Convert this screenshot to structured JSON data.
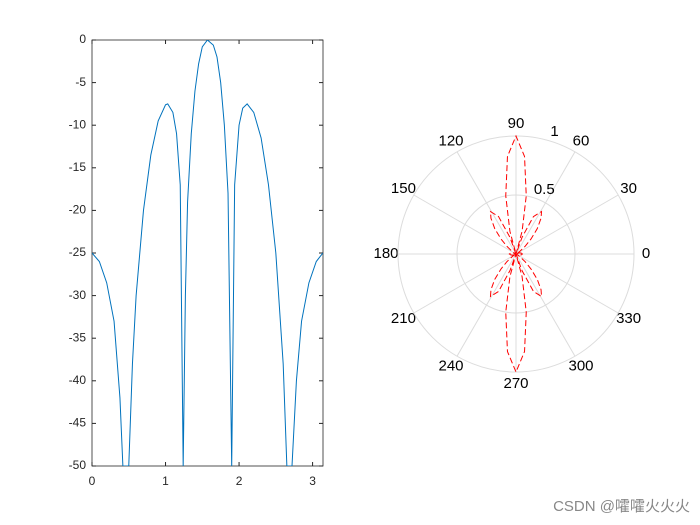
{
  "chart_data": [
    {
      "type": "line",
      "color": "#0072bd",
      "x": [
        0,
        0.1,
        0.2,
        0.3,
        0.38,
        0.42,
        0.5,
        0.55,
        0.6,
        0.7,
        0.8,
        0.9,
        1.0,
        1.03,
        1.1,
        1.15,
        1.2,
        1.24,
        1.27,
        1.3,
        1.35,
        1.4,
        1.45,
        1.5,
        1.57,
        1.65,
        1.7,
        1.75,
        1.8,
        1.85,
        1.9,
        1.94,
        2.0,
        2.05,
        2.11,
        2.2,
        2.3,
        2.4,
        2.5,
        2.6,
        2.65,
        2.72,
        2.78,
        2.85,
        2.95,
        3.05,
        3.14
      ],
      "values": [
        -25,
        -26,
        -28.5,
        -33,
        -42,
        -50,
        -50,
        -38,
        -30,
        -20,
        -13.5,
        -9.5,
        -7.6,
        -7.5,
        -8.5,
        -11,
        -17,
        -50,
        -30,
        -19,
        -11,
        -6,
        -2.8,
        -0.8,
        0,
        -0.6,
        -2,
        -5,
        -10,
        -18,
        -50,
        -17,
        -10,
        -8,
        -7.5,
        -8.5,
        -11.5,
        -17,
        -25,
        -38,
        -50,
        -50,
        -40,
        -33,
        -28.5,
        -26,
        -25
      ],
      "xlim": [
        0,
        3.1416
      ],
      "ylim": [
        -50,
        0
      ],
      "xticks": [
        0,
        1,
        2,
        3
      ],
      "yticks": [
        0,
        -5,
        -10,
        -15,
        -20,
        -25,
        -30,
        -35,
        -40,
        -45,
        -50
      ]
    },
    {
      "type": "polar",
      "color": "#ff0000",
      "line_style": "dashed",
      "theta": [
        0,
        10,
        20,
        26,
        30,
        35,
        40,
        45,
        50,
        55,
        59,
        65,
        70,
        72,
        75,
        80,
        85,
        90,
        95,
        100,
        105,
        108,
        110,
        115,
        121,
        125,
        130,
        135,
        140,
        145,
        150,
        154,
        160,
        170,
        180,
        190,
        200,
        206,
        210,
        215,
        220,
        225,
        230,
        235,
        239,
        245,
        250,
        252,
        255,
        260,
        265,
        270,
        275,
        280,
        285,
        288,
        290,
        295,
        301,
        305,
        310,
        315,
        320,
        325,
        330,
        334,
        340,
        350,
        360
      ],
      "values": [
        0.056,
        0.045,
        0.03,
        0,
        0.02,
        0.04,
        0.1,
        0.18,
        0.28,
        0.37,
        0.42,
        0.35,
        0.15,
        0,
        0.2,
        0.5,
        0.83,
        1,
        0.83,
        0.5,
        0.2,
        0,
        0.15,
        0.35,
        0.42,
        0.37,
        0.28,
        0.18,
        0.1,
        0.04,
        0.02,
        0,
        0.03,
        0.045,
        0.056,
        0.045,
        0.03,
        0,
        0.02,
        0.04,
        0.1,
        0.18,
        0.28,
        0.37,
        0.42,
        0.35,
        0.15,
        0,
        0.2,
        0.5,
        0.83,
        1,
        0.83,
        0.5,
        0.2,
        0,
        0.15,
        0.35,
        0.42,
        0.37,
        0.28,
        0.18,
        0.1,
        0.04,
        0.02,
        0,
        0.03,
        0.045,
        0.056
      ],
      "rlim": [
        0,
        1
      ],
      "rticks": [
        0.5,
        1
      ],
      "thetaticks": [
        0,
        30,
        60,
        90,
        120,
        150,
        180,
        210,
        240,
        270,
        300,
        330
      ]
    }
  ],
  "watermark": "CSDN @嚯嚯火火火"
}
